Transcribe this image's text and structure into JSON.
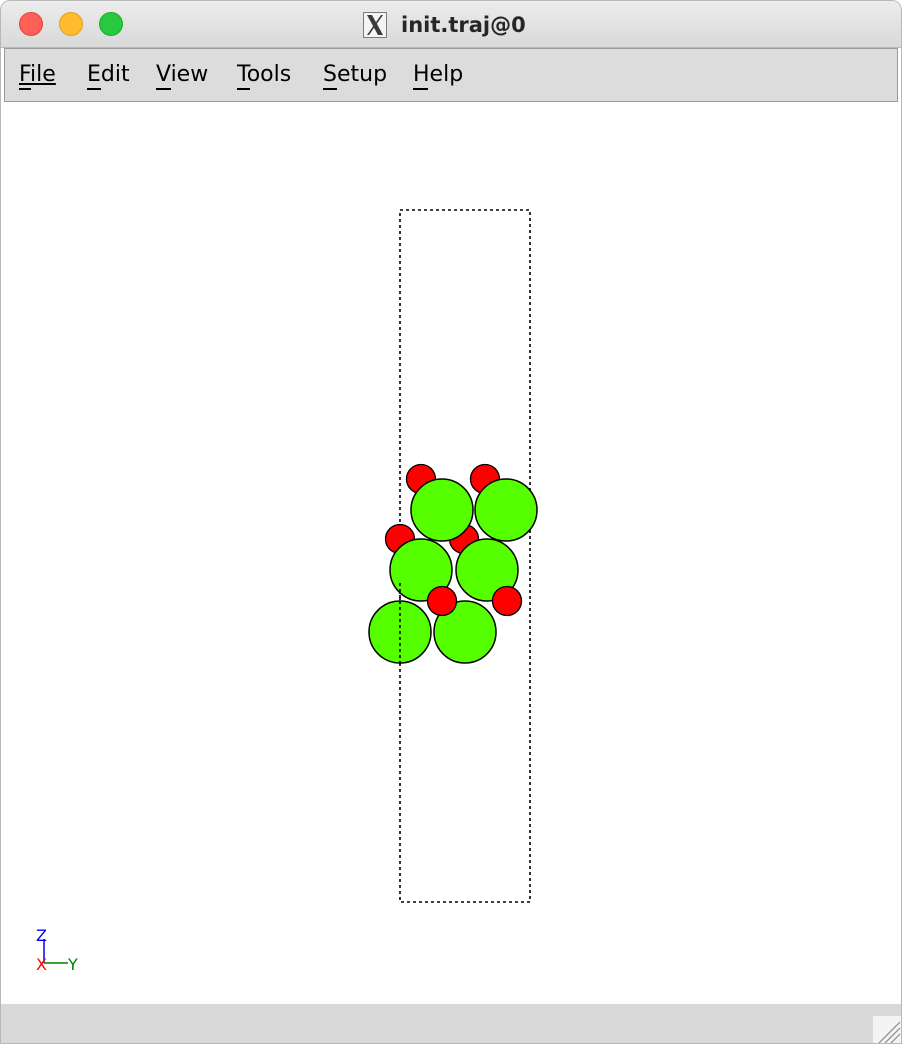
{
  "window": {
    "title": "init.traj@0"
  },
  "menu": {
    "file": "File",
    "edit": "Edit",
    "view": "View",
    "tools": "Tools",
    "setup": "Setup",
    "help": "Help"
  },
  "axes": {
    "z_label": "Z",
    "y_label": "Y",
    "x_label": "X"
  },
  "colors": {
    "large_atom": "#55ff00",
    "small_atom": "#ff0000",
    "axis_x": "#ff0000",
    "axis_y": "#008000",
    "axis_z": "#0000ff"
  }
}
